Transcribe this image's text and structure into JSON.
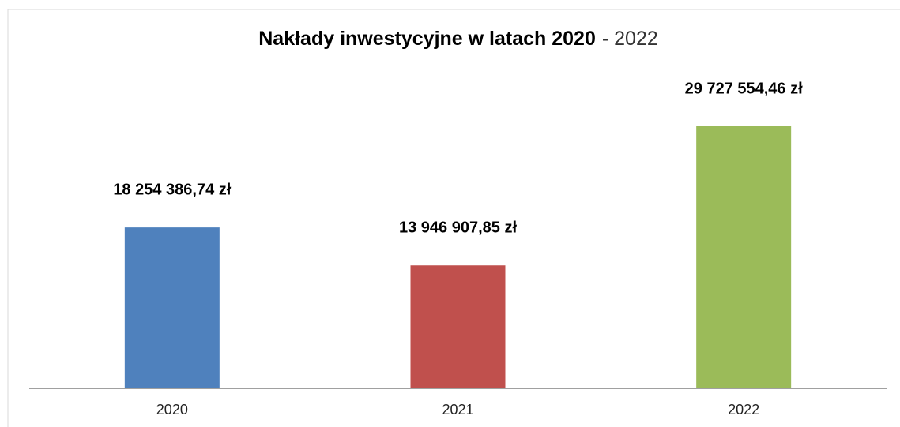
{
  "chart_data": {
    "type": "bar",
    "title": [
      "Nakłady inwestycyjne w latach 2020",
      "- 2022"
    ],
    "categories": [
      "2020",
      "2021",
      "2022"
    ],
    "values": [
      18254386.74,
      13946907.85,
      29727554.46
    ],
    "value_labels": [
      "18 254 386,74 zł",
      "13 946 907,85 zł",
      "29 727 554,46 zł"
    ],
    "colors": [
      "#4f81bd",
      "#c0504d",
      "#9bbb59"
    ]
  }
}
